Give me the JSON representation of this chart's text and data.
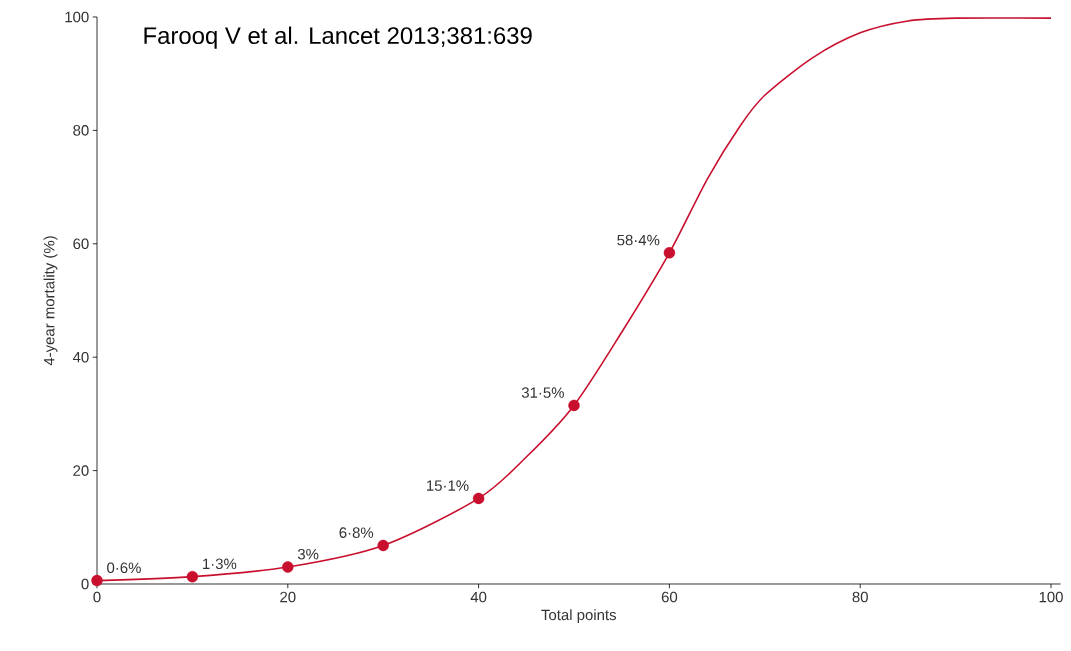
{
  "chart_data": {
    "type": "line",
    "xlabel": "Total points",
    "ylabel": "4-year mortality (%)",
    "annotations": [
      "Farooq V et al. Lancet 2013;381:639"
    ],
    "xlim": [
      0,
      101
    ],
    "ylim": [
      0,
      100
    ],
    "xticks": [
      0,
      20,
      40,
      60,
      80,
      100
    ],
    "yticks": [
      0,
      20,
      40,
      60,
      80,
      100
    ],
    "series": [
      {
        "color": "#c8102e",
        "marker": "none",
        "x": [
          0,
          10,
          20,
          30,
          40,
          45,
          50,
          55,
          60,
          64,
          67.5,
          70,
          75,
          80,
          85,
          90,
          100
        ],
        "values": [
          0.6,
          1.3,
          3,
          6.8,
          15.1,
          22.4,
          31.5,
          44.4,
          58.4,
          71.5,
          81,
          86.2,
          92.8,
          97.2,
          99.3,
          99.8,
          99.8
        ]
      },
      {
        "type": "scatter",
        "color": "#c8102e",
        "marker": "circle",
        "x": [
          0,
          10,
          20,
          30,
          40,
          50,
          60
        ],
        "values": [
          0.6,
          1.3,
          3,
          6.8,
          15.1,
          31.5,
          58.4
        ],
        "value_labels": [
          "0·6%",
          "1·3%",
          "3%",
          "6·8%",
          "15·1%",
          "31·5%",
          "58·4%"
        ]
      }
    ]
  }
}
